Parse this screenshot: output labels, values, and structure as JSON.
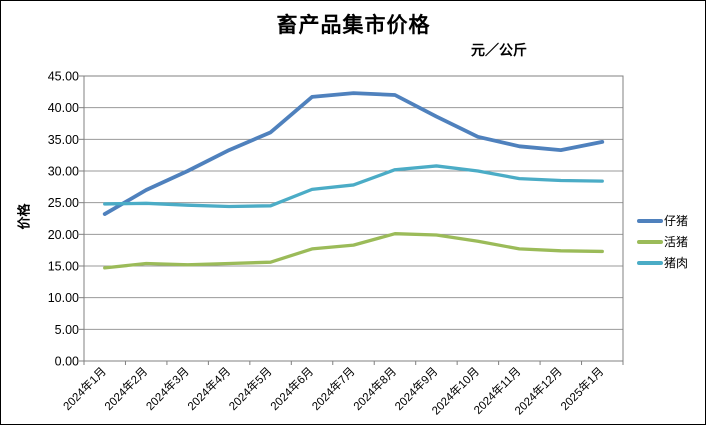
{
  "title": "畜产品集市价格",
  "subtitle": "元／公斤",
  "y_axis_title": "价格",
  "legend": {
    "position": "right",
    "items": [
      {
        "label": "仔猪",
        "color": "#4F81BD"
      },
      {
        "label": "活猪",
        "color": "#9BBB59"
      },
      {
        "label": "猪肉",
        "color": "#4BACC6"
      }
    ]
  },
  "chart_data": {
    "type": "line",
    "title": "畜产品集市价格",
    "subtitle": "元／公斤",
    "ylabel": "价格",
    "unit": "元／公斤",
    "categories": [
      "2024年1月",
      "2024年2月",
      "2024年3月",
      "2024年4月",
      "2024年5月",
      "2024年6月",
      "2024年7月",
      "2024年8月",
      "2024年9月",
      "2024年10月",
      "2024年11月",
      "2024年12月",
      "2025年1月"
    ],
    "series": [
      {
        "name": "仔猪",
        "color": "#4F81BD",
        "values": [
          23.2,
          27.0,
          30.0,
          33.3,
          36.1,
          41.7,
          42.3,
          42.0,
          38.6,
          35.4,
          33.9,
          33.3,
          34.6
        ]
      },
      {
        "name": "活猪",
        "color": "#9BBB59",
        "values": [
          14.7,
          15.4,
          15.2,
          15.4,
          15.6,
          17.7,
          18.3,
          20.1,
          19.9,
          18.9,
          17.7,
          17.4,
          17.3
        ]
      },
      {
        "name": "猪肉",
        "color": "#4BACC6",
        "values": [
          24.8,
          24.9,
          24.6,
          24.4,
          24.5,
          27.1,
          27.8,
          30.2,
          30.8,
          30.0,
          28.8,
          28.5,
          28.4
        ]
      }
    ],
    "ylim": [
      0,
      45
    ],
    "y_tick_step": 5,
    "y_tick_labels": [
      "45.00",
      "40.00",
      "35.00",
      "30.00",
      "25.00",
      "20.00",
      "15.00",
      "10.00",
      "5.00",
      "0.00"
    ],
    "grid": true,
    "legend_position": "right"
  },
  "style": {
    "title_color": "#000000",
    "text_color": "#000000",
    "axis_color": "#808080",
    "grid_color": "#9A9A9A",
    "background": "#FFFFFF",
    "border_color": "#000000"
  }
}
